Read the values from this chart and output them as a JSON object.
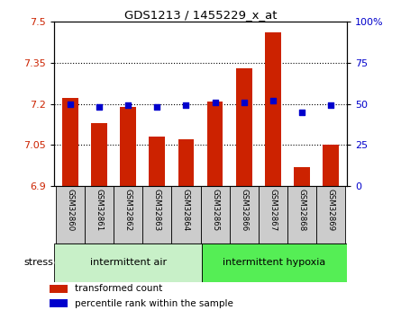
{
  "title": "GDS1213 / 1455229_x_at",
  "samples": [
    "GSM32860",
    "GSM32861",
    "GSM32862",
    "GSM32863",
    "GSM32864",
    "GSM32865",
    "GSM32866",
    "GSM32867",
    "GSM32868",
    "GSM32869"
  ],
  "transformed_count": [
    7.22,
    7.13,
    7.19,
    7.08,
    7.07,
    7.21,
    7.33,
    7.46,
    6.97,
    7.05
  ],
  "percentile_rank": [
    50,
    48,
    49,
    48,
    49,
    51,
    51,
    52,
    45,
    49
  ],
  "ylim_left": [
    6.9,
    7.5
  ],
  "ylim_right": [
    0,
    100
  ],
  "yticks_left": [
    6.9,
    7.05,
    7.2,
    7.35,
    7.5
  ],
  "yticks_right": [
    0,
    25,
    50,
    75,
    100
  ],
  "bar_color": "#cc2200",
  "dot_color": "#0000cc",
  "group1_label": "intermittent air",
  "group2_label": "intermittent hypoxia",
  "group1_bg": "#c8f0c8",
  "group2_bg": "#55ee55",
  "tick_area_bg": "#cccccc",
  "stress_label": "stress",
  "legend_bar_label": "transformed count",
  "legend_dot_label": "percentile rank within the sample",
  "gridline_yticks": [
    7.05,
    7.2,
    7.35
  ]
}
